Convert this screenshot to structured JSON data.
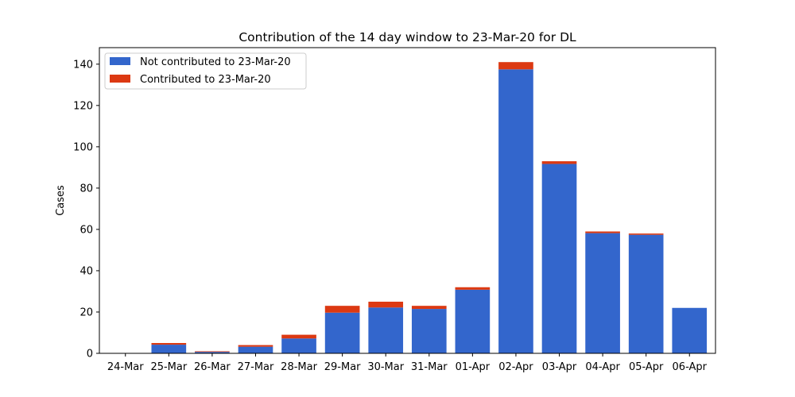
{
  "chart_data": {
    "type": "bar",
    "stacked": true,
    "title": "Contribution of the 14 day window to 23-Mar-20 for DL",
    "xlabel": "",
    "ylabel": "Cases",
    "ylim": [
      0,
      148
    ],
    "yticks": [
      0,
      20,
      40,
      60,
      80,
      100,
      120,
      140
    ],
    "grid": false,
    "legend_position": "top-left",
    "categories": [
      "24-Mar",
      "25-Mar",
      "26-Mar",
      "27-Mar",
      "28-Mar",
      "29-Mar",
      "30-Mar",
      "31-Mar",
      "01-Apr",
      "02-Apr",
      "03-Apr",
      "04-Apr",
      "05-Apr",
      "06-Apr"
    ],
    "series": [
      {
        "name": "Not contributed to 23-Mar-20",
        "color": "#3366cc",
        "values": [
          0,
          4.2,
          0.7,
          3.2,
          7.2,
          19.7,
          22.2,
          21.5,
          30.8,
          137.5,
          91.7,
          58.2,
          57.4,
          22
        ]
      },
      {
        "name": "Contributed to 23-Mar-20",
        "color": "#dc3912",
        "values": [
          0,
          0.8,
          0.3,
          0.8,
          1.8,
          3.3,
          2.8,
          1.5,
          1.2,
          3.5,
          1.3,
          0.8,
          0.6,
          0
        ]
      }
    ]
  }
}
